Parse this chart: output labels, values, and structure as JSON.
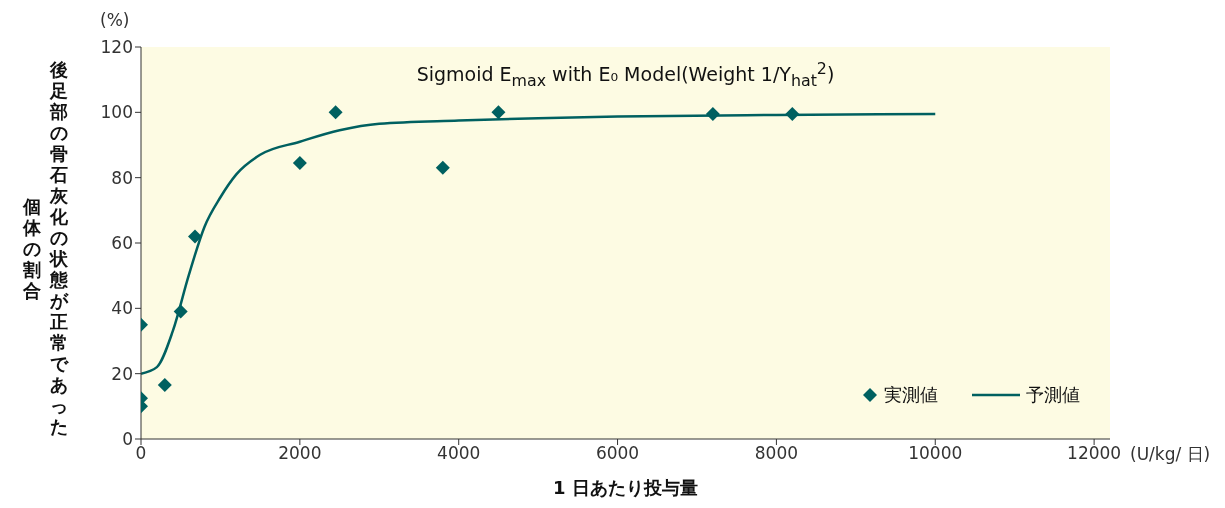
{
  "chart_data": {
    "type": "scatter",
    "title": "Sigmoid E$_{max}$ with E₀ Model(Weight 1/Y$_{hat}$$^{2}$)",
    "xlabel": "1 日あたり投与量",
    "ylabel": "後足部の骨石灰化の状態が正常であった個体の割合",
    "annotations": [
      "(%)",
      "(U/kg/ 日)"
    ],
    "xlim": [
      0,
      12200
    ],
    "xticks": [
      0,
      2000,
      4000,
      6000,
      8000,
      10000,
      12000
    ],
    "ylim": [
      0,
      120
    ],
    "yticks": [
      0,
      20,
      40,
      60,
      80,
      100,
      120
    ],
    "grid": false,
    "legend": "bottom right",
    "series": [
      {
        "name": "実測値",
        "marker": "diamond",
        "color": "#006060",
        "x": [
          0,
          0,
          0,
          300,
          500,
          680,
          2000,
          2450,
          3800,
          4500,
          7200,
          8200
        ],
        "values": [
          35,
          12.5,
          10,
          16.5,
          39,
          62,
          84.5,
          100,
          83,
          100,
          99.5,
          99.5
        ]
      },
      {
        "name": "予測値",
        "type": "line",
        "marker": "none",
        "line_style": "solid",
        "color": "#006060",
        "x": [
          0,
          200,
          400,
          600,
          800,
          1000,
          1200,
          1500,
          2000,
          2500,
          3000,
          4000,
          5000,
          6000,
          8000,
          10000
        ],
        "values": [
          20,
          22,
          33,
          50,
          65,
          74,
          81,
          87,
          91,
          94.5,
          96.5,
          97.5,
          98.2,
          98.7,
          99.2,
          99.5
        ]
      }
    ]
  }
}
